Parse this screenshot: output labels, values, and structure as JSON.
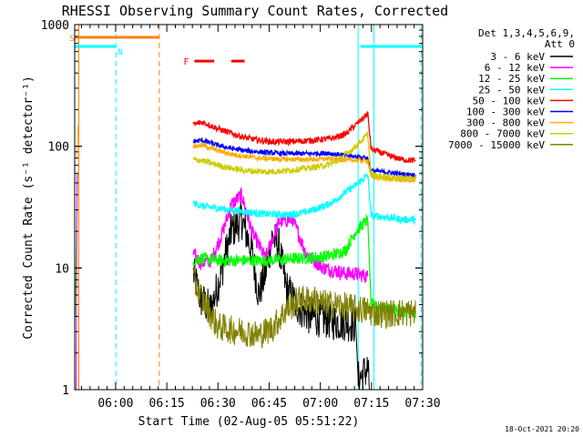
{
  "chart_data": {
    "type": "line",
    "title": "RHESSI Observing Summary Count Rates, Corrected",
    "xlabel": "Start Time (02-Aug-05 05:51:22)",
    "ylabel": "Corrected Count Rate (s⁻¹ detector⁻¹)",
    "y_scale": "log",
    "ylim": [
      1,
      1000
    ],
    "xlim_minutes": [
      -3.4,
      98.6
    ],
    "x_ticks": [
      {
        "t": 8.6,
        "label": "06:00"
      },
      {
        "t": 23.6,
        "label": "06:15"
      },
      {
        "t": 38.6,
        "label": "06:30"
      },
      {
        "t": 53.6,
        "label": "06:45"
      },
      {
        "t": 68.6,
        "label": "07:00"
      },
      {
        "t": 83.6,
        "label": "07:15"
      },
      {
        "t": 98.6,
        "label": "07:30"
      }
    ],
    "y_ticks": [
      {
        "v": 1,
        "label": "1"
      },
      {
        "v": 10,
        "label": "10"
      },
      {
        "v": 100,
        "label": "100"
      },
      {
        "v": 1000,
        "label": "1000"
      }
    ],
    "legend": {
      "placement": "right",
      "header": [
        "Det 1,3,4,5,6,9,",
        "Att 0"
      ]
    },
    "series": [
      {
        "name": "3 - 6 keV",
        "color": "#000000",
        "x": [
          31.4,
          33.6,
          36.5,
          39.5,
          42.5,
          45.5,
          48.5,
          50.5,
          52.5,
          54.5,
          56.5,
          58.5,
          61.5,
          65.5,
          70.0,
          73.0,
          76.0,
          79.0,
          79.7,
          82.5,
          83.0
        ],
        "y": [
          9.0,
          5.5,
          4.5,
          9,
          20,
          25,
          14,
          6,
          9,
          18,
          15,
          7,
          5,
          4,
          3.8,
          3.6,
          3.6,
          3.4,
          1.2,
          1.5,
          1.0
        ]
      },
      {
        "name": "6 - 12 keV",
        "color": "#ff00ff",
        "x": [
          31.4,
          33.6,
          36.5,
          39.5,
          42.5,
          45.5,
          48.5,
          52.5,
          56.5,
          60.5,
          64.5,
          69.5,
          73.0,
          76.0,
          79.0,
          82.5
        ],
        "y": [
          13.0,
          11.0,
          11.5,
          18,
          33,
          40,
          20,
          12,
          24,
          25,
          13,
          10,
          9.5,
          9,
          9,
          8.5
        ]
      },
      {
        "name": "12 - 25 keV",
        "color": "#00ff00",
        "x": [
          31.4,
          34.0,
          38.5,
          42.5,
          46.5,
          50.5,
          54.5,
          58.5,
          62.5,
          66.5,
          70.5,
          73.0,
          76.0,
          79.0,
          82.5,
          83.5,
          88.5,
          92.5,
          96.5
        ],
        "y": [
          11.5,
          12.0,
          11.5,
          11.5,
          11.5,
          11.5,
          11.6,
          11.8,
          12,
          12.2,
          12.5,
          13,
          14,
          20,
          25,
          5,
          4.6,
          4.4,
          4.3
        ]
      },
      {
        "name": "25 - 50 keV",
        "color": "#00ffff",
        "x": [
          31.4,
          34.5,
          38.5,
          42.5,
          46.5,
          50.5,
          54.5,
          58.5,
          62.5,
          66.5,
          70.5,
          73.0,
          76.0,
          79.0,
          82.5,
          83.5,
          88.5,
          92.5,
          96.5
        ],
        "y": [
          34,
          32.0,
          31,
          30,
          29,
          28,
          27.5,
          27.5,
          28,
          30,
          33,
          36,
          42,
          48,
          58,
          27,
          26,
          25,
          25
        ]
      },
      {
        "name": "50 - 100 keV",
        "color": "#ff0000",
        "x": [
          31.4,
          34.0,
          38.5,
          42.5,
          46.5,
          50.5,
          54.5,
          58.5,
          62.5,
          66.5,
          70.5,
          73.0,
          76.0,
          79.0,
          82.5,
          83.5,
          88.5,
          92.5,
          96.5
        ],
        "y": [
          150,
          158.0,
          140,
          128,
          118,
          112,
          109,
          109,
          110,
          112,
          115,
          118,
          126,
          150,
          185,
          95,
          84,
          78,
          76
        ]
      },
      {
        "name": "100 - 300 keV",
        "color": "#0000ff",
        "x": [
          31.4,
          34.0,
          38.5,
          42.5,
          46.5,
          50.5,
          54.5,
          58.5,
          62.5,
          66.5,
          70.5,
          73.0,
          76.0,
          79.0,
          82.5,
          83.5,
          88.5,
          92.5,
          96.5
        ],
        "y": [
          110,
          112,
          102,
          96,
          92,
          90,
          88,
          87,
          87,
          87,
          88,
          86,
          84,
          82,
          80,
          63,
          61,
          59,
          58
        ]
      },
      {
        "name": "300 - 800 keV",
        "color": "#ffaa00",
        "x": [
          31.4,
          34.0,
          38.5,
          42.5,
          46.5,
          50.5,
          54.5,
          58.5,
          62.5,
          66.5,
          70.5,
          73.0,
          76.0,
          79.0,
          82.5,
          83.5,
          88.5,
          92.5,
          96.5
        ],
        "y": [
          100,
          102.0,
          92,
          86,
          83,
          80,
          79,
          78,
          78,
          78,
          79,
          78,
          77,
          77,
          76,
          56,
          54,
          53,
          52
        ]
      },
      {
        "name": "800 - 7000 keV",
        "color": "#cccc00",
        "x": [
          31.4,
          34.0,
          38.5,
          42.5,
          46.5,
          50.5,
          54.5,
          58.5,
          62.5,
          66.5,
          70.5,
          73.0,
          76.0,
          79.0,
          82.5,
          83.5,
          88.5,
          92.5,
          96.5
        ],
        "y": [
          78,
          76.0,
          70,
          66,
          63,
          62,
          62,
          63,
          65,
          67,
          70,
          74,
          85,
          100,
          125,
          58,
          56,
          55,
          55
        ]
      },
      {
        "name": "7000 - 15000 keV",
        "color": "#808000",
        "x": [
          31.4,
          34.0,
          38.5,
          42.5,
          46.5,
          50.5,
          54.5,
          58.5,
          62.5,
          66.5,
          70.5,
          73.0,
          76.0,
          79.0,
          82.5,
          83.5,
          88.5,
          92.5,
          96.5
        ],
        "y": [
          8,
          5.5,
          3.3,
          3.1,
          3.0,
          2.8,
          3.2,
          4.5,
          5.5,
          5.5,
          5.0,
          5.0,
          4.8,
          4.6,
          4.5,
          4.3,
          4.2,
          4.3,
          4.3
        ]
      }
    ],
    "pre_gap_segments": [
      {
        "color": "#00ff00",
        "x": [
          -3.3,
          -2.6
        ],
        "y": [
          4.0,
          60
        ]
      },
      {
        "color": "#ff00ff",
        "x": [
          -3.0,
          -2.7
        ],
        "y": [
          1,
          60
        ]
      },
      {
        "color": "#ffaa00",
        "x": [
          -2.8,
          -2.4
        ],
        "y": [
          80,
          150
        ]
      }
    ],
    "flag_bars": [
      {
        "label": "S",
        "color": "#ff8000",
        "t_start": -3.3,
        "t_end": 21.4,
        "level": 0.035
      },
      {
        "label": "N",
        "color": "#00ffff",
        "t_start": -3.3,
        "t_end": 8.7,
        "level": 0.06
      },
      {
        "label": "",
        "color": "#00ffff",
        "t_start": 80.4,
        "t_end": 98.2,
        "level": 0.06
      }
    ],
    "flare_marker": {
      "label": "F",
      "color": "#ff0000",
      "segments": [
        [
          31.7,
          37.5
        ],
        [
          42.5,
          46.4
        ]
      ],
      "level": 0.1
    },
    "vertical_lines": [
      {
        "t": -2.2,
        "color": "#ff8000",
        "style": "solid"
      },
      {
        "t": 8.7,
        "color": "#00ffff",
        "style": "dashed"
      },
      {
        "t": 21.4,
        "color": "#ff8000",
        "style": "dashed"
      },
      {
        "t": 79.7,
        "color": "#00ffff",
        "style": "solid"
      },
      {
        "t": 84.3,
        "color": "#00ffff",
        "style": "solid"
      },
      {
        "t": 98.2,
        "color": "#00ffff",
        "style": "dashed"
      }
    ]
  },
  "footer": {
    "timestamp": "18-Oct-2021 20:20"
  }
}
